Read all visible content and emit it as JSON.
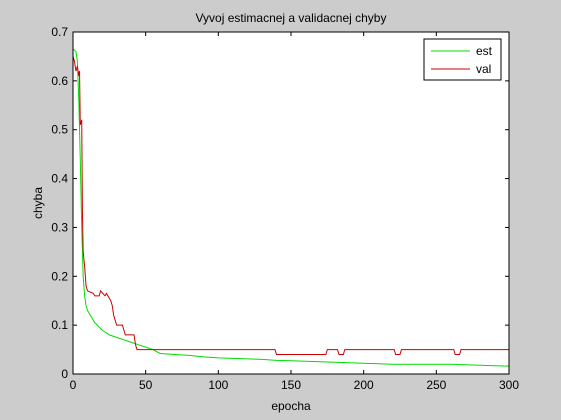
{
  "chart_data": {
    "type": "line",
    "title": "Vyvoj estimacnej a validacnej chyby",
    "xlabel": "epocha",
    "ylabel": "chyba",
    "xlim": [
      0,
      300
    ],
    "ylim": [
      0,
      0.7
    ],
    "xticks": [
      0,
      50,
      100,
      150,
      200,
      250,
      300
    ],
    "xtick_labels": [
      "0",
      "50",
      "100",
      "150",
      "200",
      "250",
      "300"
    ],
    "yticks": [
      0,
      0.1,
      0.2,
      0.3,
      0.4,
      0.5,
      0.6,
      0.7
    ],
    "ytick_labels": [
      "0",
      "0.1",
      "0.2",
      "0.3",
      "0.4",
      "0.5",
      "0.6",
      "0.7"
    ],
    "grid": false,
    "legend_position": "top-right",
    "series": [
      {
        "name": "est",
        "color": "#00dd00",
        "x": [
          0,
          2,
          3,
          4,
          5,
          6,
          7,
          8,
          9,
          10,
          12,
          15,
          20,
          25,
          30,
          35,
          40,
          45,
          50,
          55,
          60,
          70,
          80,
          90,
          100,
          110,
          120,
          130,
          140,
          150,
          160,
          170,
          180,
          190,
          200,
          210,
          220,
          230,
          240,
          250,
          260,
          270,
          280,
          290,
          300
        ],
        "y": [
          0.665,
          0.66,
          0.64,
          0.56,
          0.44,
          0.3,
          0.2,
          0.16,
          0.14,
          0.13,
          0.12,
          0.105,
          0.09,
          0.08,
          0.075,
          0.07,
          0.065,
          0.06,
          0.055,
          0.05,
          0.042,
          0.04,
          0.038,
          0.035,
          0.033,
          0.032,
          0.031,
          0.03,
          0.028,
          0.027,
          0.026,
          0.025,
          0.024,
          0.023,
          0.022,
          0.021,
          0.02,
          0.02,
          0.02,
          0.02,
          0.02,
          0.019,
          0.018,
          0.017,
          0.016
        ]
      },
      {
        "name": "val",
        "color": "#cc0000",
        "x": [
          0,
          1,
          2,
          3,
          4,
          4.5,
          5,
          6,
          6.5,
          7,
          8,
          9,
          10,
          14,
          15,
          18,
          19,
          22,
          23,
          25,
          26,
          27,
          28,
          29,
          30,
          31,
          34,
          35,
          36,
          40,
          42,
          43,
          44,
          45,
          50,
          100,
          139,
          140,
          170,
          174,
          175,
          182,
          183,
          186,
          187,
          221,
          222,
          223,
          225,
          226,
          262,
          263,
          264,
          266,
          267,
          300
        ],
        "y": [
          0.65,
          0.64,
          0.62,
          0.63,
          0.61,
          0.62,
          0.51,
          0.52,
          0.33,
          0.25,
          0.22,
          0.18,
          0.17,
          0.165,
          0.16,
          0.16,
          0.17,
          0.16,
          0.165,
          0.155,
          0.15,
          0.14,
          0.12,
          0.11,
          0.1,
          0.1,
          0.1,
          0.09,
          0.08,
          0.08,
          0.08,
          0.06,
          0.05,
          0.05,
          0.05,
          0.05,
          0.05,
          0.04,
          0.04,
          0.04,
          0.05,
          0.05,
          0.04,
          0.04,
          0.05,
          0.05,
          0.04,
          0.04,
          0.04,
          0.05,
          0.05,
          0.04,
          0.04,
          0.04,
          0.05,
          0.05
        ]
      }
    ]
  }
}
